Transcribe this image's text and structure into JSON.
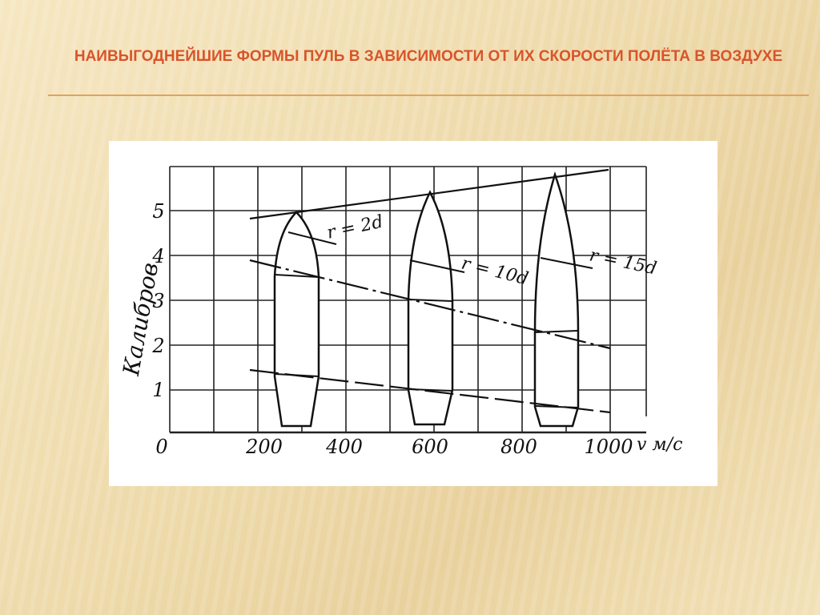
{
  "title": "НАИВЫГОДНЕЙШИЕ ФОРМЫ ПУЛЬ В ЗАВИСИМОСТИ ОТ ИХ  СКОРОСТИ ПОЛЁТА В ВОЗДУХЕ",
  "figure": {
    "y_label": "Калибров",
    "y_ticks": [
      1,
      2,
      3,
      4,
      5
    ],
    "x_ticks": [
      0,
      200,
      400,
      600,
      800,
      1000
    ],
    "x_unit": "v м/с",
    "annotations": [
      "r = 2d",
      "r = 10d",
      "r = 15d"
    ]
  }
}
